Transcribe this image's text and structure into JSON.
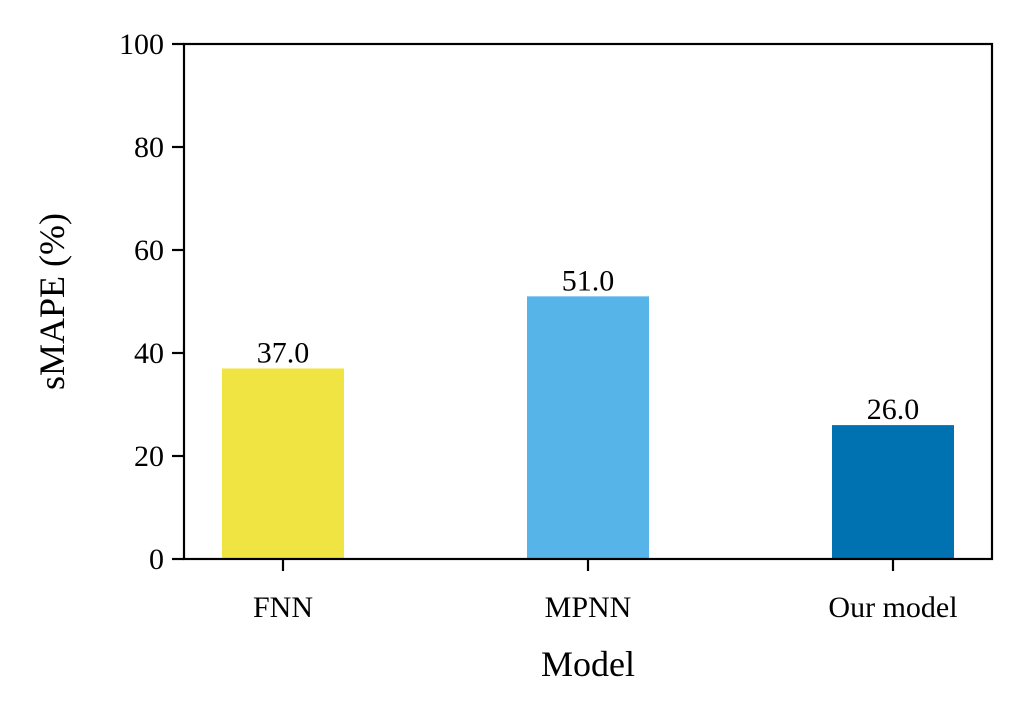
{
  "chart_data": {
    "type": "bar",
    "title": "",
    "xlabel": "Model",
    "ylabel": "sMAPE (%)",
    "categories": [
      "FNN",
      "MPNN",
      "Our model"
    ],
    "values": [
      37.0,
      51.0,
      26.0
    ],
    "value_labels": [
      "37.0",
      "51.0",
      "26.0"
    ],
    "colors": [
      "#F0E442",
      "#56B4E9",
      "#0072B2"
    ],
    "ylim": [
      0,
      100
    ],
    "yticks": [
      0,
      20,
      40,
      60,
      80,
      100
    ],
    "grid": false,
    "legend": false
  }
}
